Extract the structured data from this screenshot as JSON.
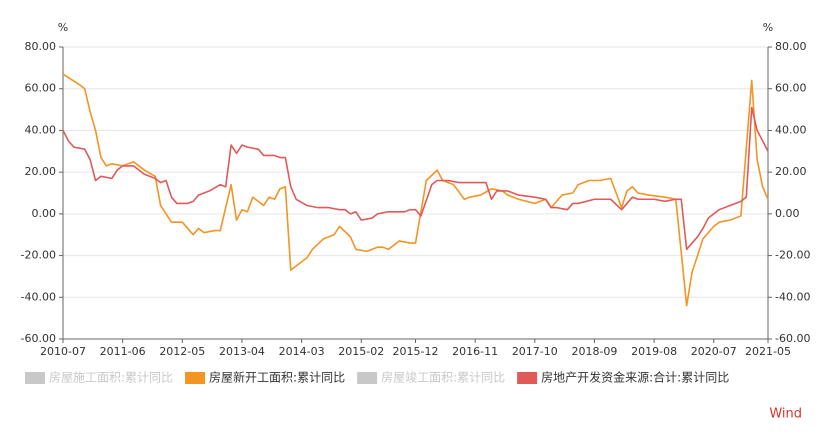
{
  "chart_data": {
    "type": "line",
    "y_unit": "%",
    "y2_unit": "%",
    "source": "Wind",
    "source_color": "#d9342b",
    "grid": true,
    "legend": "bottom",
    "xlim": [
      "2010-07",
      "2021-05"
    ],
    "xticks": [
      "2010-07",
      "2011-06",
      "2012-05",
      "2013-04",
      "2014-03",
      "2015-02",
      "2015-12",
      "2016-11",
      "2017-10",
      "2018-09",
      "2019-08",
      "2020-07",
      "2021-05"
    ],
    "ylim": [
      -60,
      80
    ],
    "yticks": [
      {
        "value": -60,
        "label": "-60.00"
      },
      {
        "value": -40,
        "label": "-40.00"
      },
      {
        "value": -20,
        "label": "-20.00"
      },
      {
        "value": 0,
        "label": "0.00"
      },
      {
        "value": 20,
        "label": "20.00"
      },
      {
        "value": 40,
        "label": "40.00"
      },
      {
        "value": 60,
        "label": "60.00"
      },
      {
        "value": 80,
        "label": "80.00"
      }
    ],
    "y2lim": [
      -60,
      80
    ],
    "y2ticks": [
      {
        "value": -60,
        "label": "-60.00"
      },
      {
        "value": -40,
        "label": "-40.00"
      },
      {
        "value": -20,
        "label": "-20.00"
      },
      {
        "value": 0,
        "label": "0.00"
      },
      {
        "value": 20,
        "label": "20.00"
      },
      {
        "value": 40,
        "label": "40.00"
      },
      {
        "value": 60,
        "label": "60.00"
      },
      {
        "value": 80,
        "label": "80.00"
      }
    ],
    "series": [
      {
        "name": "房屋施工面积:累计同比",
        "color": "#c8c8c8",
        "hidden": true
      },
      {
        "name": "房屋新开工面积:累计同比",
        "color": "#f39423",
        "x": [
          "2010-07",
          "2010-10",
          "2010-11",
          "2010-12",
          "2011-01",
          "2011-02",
          "2011-03",
          "2011-04",
          "2011-06",
          "2011-08",
          "2011-10",
          "2011-12",
          "2012-01",
          "2012-03",
          "2012-05",
          "2012-07",
          "2012-08",
          "2012-09",
          "2012-11",
          "2012-12",
          "2013-02",
          "2013-03",
          "2013-04",
          "2013-05",
          "2013-06",
          "2013-08",
          "2013-09",
          "2013-10",
          "2013-11",
          "2013-12",
          "2014-01",
          "2014-04",
          "2014-05",
          "2014-07",
          "2014-09",
          "2014-10",
          "2014-12",
          "2015-01",
          "2015-03",
          "2015-05",
          "2015-06",
          "2015-07",
          "2015-09",
          "2015-11",
          "2015-12",
          "2016-02",
          "2016-04",
          "2016-05",
          "2016-07",
          "2016-09",
          "2016-10",
          "2016-12",
          "2017-02",
          "2017-04",
          "2017-05",
          "2017-07",
          "2017-10",
          "2017-12",
          "2018-01",
          "2018-03",
          "2018-05",
          "2018-06",
          "2018-08",
          "2018-10",
          "2018-12",
          "2019-02",
          "2019-03",
          "2019-04",
          "2019-05",
          "2019-07",
          "2019-10",
          "2019-12",
          "2020-02",
          "2020-03",
          "2020-04",
          "2020-05",
          "2020-07",
          "2020-08",
          "2020-10",
          "2020-12",
          "2021-02",
          "2021-03",
          "2021-04",
          "2021-05"
        ],
        "values": [
          67,
          62,
          60,
          49,
          40,
          27,
          23,
          24,
          23,
          25,
          21,
          18,
          4,
          -4,
          -4,
          -10,
          -7,
          -9,
          -8,
          -8,
          14,
          -3,
          2,
          1,
          8,
          4,
          8,
          7,
          12,
          13,
          -27,
          -21,
          -17,
          -12,
          -10,
          -6,
          -11,
          -17,
          -18,
          -16,
          -16,
          -17,
          -13,
          -14,
          -14,
          16,
          21,
          16,
          14,
          7,
          8,
          9,
          12,
          11,
          9,
          7,
          5,
          7,
          3,
          9,
          10,
          14,
          16,
          16,
          17,
          3,
          11,
          13,
          10,
          9,
          8,
          7,
          -44,
          -28,
          -20,
          -12,
          -6,
          -4,
          -3,
          -1,
          64,
          26,
          13,
          7
        ]
      },
      {
        "name": "房屋竣工面积:累计同比",
        "color": "#c8c8c8",
        "hidden": true
      },
      {
        "name": "房地产开发资金来源:合计:累计同比",
        "color": "#e05a5a",
        "axis": "y2",
        "x": [
          "2010-07",
          "2010-08",
          "2010-09",
          "2010-11",
          "2010-12",
          "2011-01",
          "2011-02",
          "2011-04",
          "2011-05",
          "2011-06",
          "2011-08",
          "2011-10",
          "2011-12",
          "2012-01",
          "2012-02",
          "2012-03",
          "2012-04",
          "2012-06",
          "2012-07",
          "2012-08",
          "2012-10",
          "2012-12",
          "2013-01",
          "2013-02",
          "2013-03",
          "2013-04",
          "2013-05",
          "2013-07",
          "2013-08",
          "2013-10",
          "2013-11",
          "2013-12",
          "2014-01",
          "2014-02",
          "2014-04",
          "2014-06",
          "2014-08",
          "2014-10",
          "2014-11",
          "2014-12",
          "2015-01",
          "2015-02",
          "2015-04",
          "2015-05",
          "2015-07",
          "2015-10",
          "2015-11",
          "2015-12",
          "2016-01",
          "2016-03",
          "2016-04",
          "2016-06",
          "2016-08",
          "2016-10",
          "2016-12",
          "2017-01",
          "2017-02",
          "2017-03",
          "2017-05",
          "2017-06",
          "2017-07",
          "2017-10",
          "2017-12",
          "2018-01",
          "2018-02",
          "2018-04",
          "2018-05",
          "2018-06",
          "2018-09",
          "2018-10",
          "2018-12",
          "2019-02",
          "2019-04",
          "2019-05",
          "2019-08",
          "2019-10",
          "2019-12",
          "2020-01",
          "2020-02",
          "2020-04",
          "2020-05",
          "2020-06",
          "2020-08",
          "2020-10",
          "2020-12",
          "2021-01",
          "2021-02",
          "2021-03",
          "2021-05"
        ],
        "values": [
          40,
          35,
          32,
          31,
          26,
          16,
          18,
          17,
          21,
          23,
          23,
          19,
          17,
          15,
          16,
          8,
          5,
          5,
          6,
          9,
          11,
          14,
          13,
          33,
          29,
          33,
          32,
          31,
          28,
          28,
          27,
          27,
          13,
          7,
          4,
          3,
          3,
          2,
          2,
          0,
          1,
          -3,
          -2,
          0,
          1,
          1,
          2,
          2,
          -1,
          14,
          16,
          16,
          15,
          15,
          15,
          15,
          7,
          11,
          11,
          10,
          9,
          8,
          7,
          3,
          3,
          2,
          5,
          5,
          7,
          7,
          7,
          2,
          8,
          7,
          7,
          6,
          7,
          7,
          -17,
          -11,
          -7,
          -2,
          2,
          4,
          6,
          8,
          51,
          40,
          30
        ]
      }
    ]
  }
}
